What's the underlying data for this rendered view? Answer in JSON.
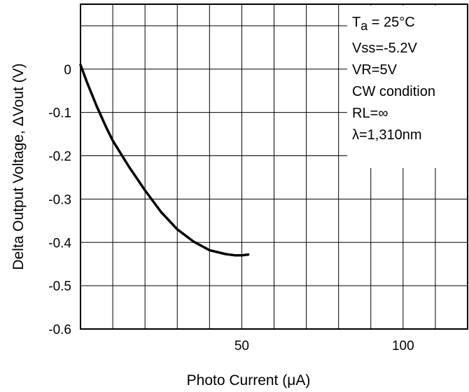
{
  "chart_data": {
    "type": "line",
    "title": "",
    "xlabel": "Photo Current (μA)",
    "ylabel": "Delta Output Voltage, ΔVout (V)",
    "xlim": [
      0,
      120
    ],
    "ylim": [
      -0.6,
      0.15
    ],
    "x_ticks": [
      50,
      100
    ],
    "x_tick_labels": [
      "50",
      "100"
    ],
    "y_ticks": [
      0,
      -0.1,
      -0.2,
      -0.3,
      -0.4,
      -0.5,
      -0.6
    ],
    "y_tick_labels": [
      "0",
      "-0.1",
      "-0.2",
      "-0.3",
      "-0.4",
      "-0.5",
      "-0.6"
    ],
    "x_grid_step": 10,
    "y_grid_step": 0.1,
    "grid": true,
    "annotations": {
      "ta_main": "T",
      "ta_sub": "a",
      "ta_rest": " = 25°C",
      "lines": [
        "Vss=-5.2V",
        "VR=5V",
        "CW condition",
        "RL=∞",
        "λ=1,310nm"
      ]
    },
    "series": [
      {
        "x": [
          0,
          2,
          5,
          8,
          10,
          15,
          20,
          25,
          30,
          35,
          40,
          45,
          48,
          50,
          52
        ],
        "y": [
          0.01,
          -0.03,
          -0.085,
          -0.135,
          -0.165,
          -0.225,
          -0.28,
          -0.33,
          -0.37,
          -0.398,
          -0.418,
          -0.427,
          -0.43,
          -0.43,
          -0.428
        ]
      }
    ]
  }
}
